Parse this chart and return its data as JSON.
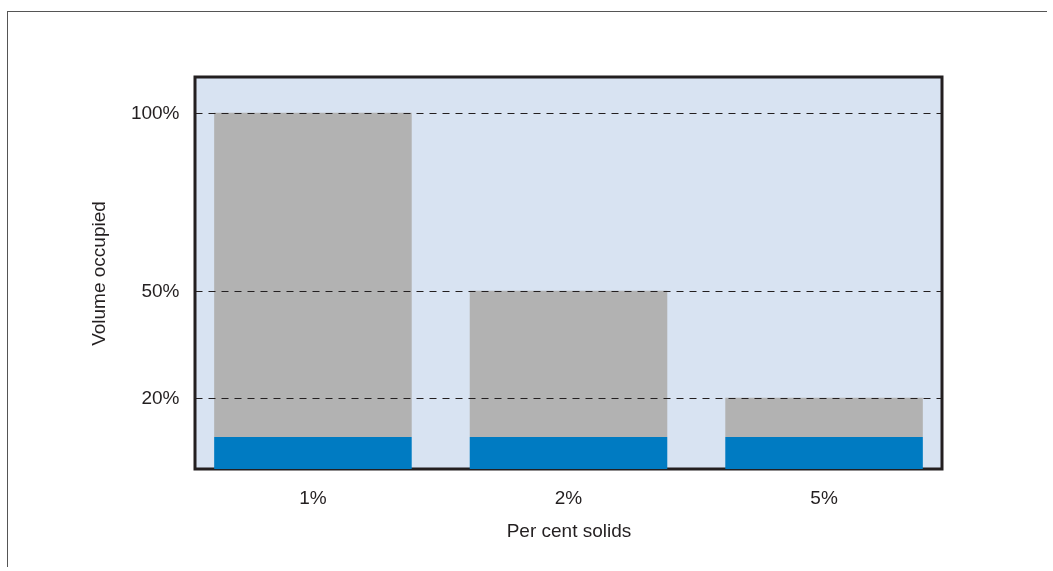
{
  "chart_data": {
    "type": "bar",
    "xlabel": "Per cent solids",
    "ylabel": "Volume occupied",
    "categories": [
      "1%",
      "2%",
      "5%"
    ],
    "series": [
      {
        "color": "#007bc2",
        "values": [
          9,
          9,
          9
        ]
      },
      {
        "color": "#b2b2b2",
        "values": [
          91,
          41,
          11
        ]
      }
    ],
    "stacked": true,
    "ylim": [
      0,
      110
    ],
    "yticks": [
      {
        "value": 20,
        "label": "20%"
      },
      {
        "value": 50,
        "label": "50%"
      },
      {
        "value": 100,
        "label": "100%"
      }
    ],
    "grid": "y"
  }
}
